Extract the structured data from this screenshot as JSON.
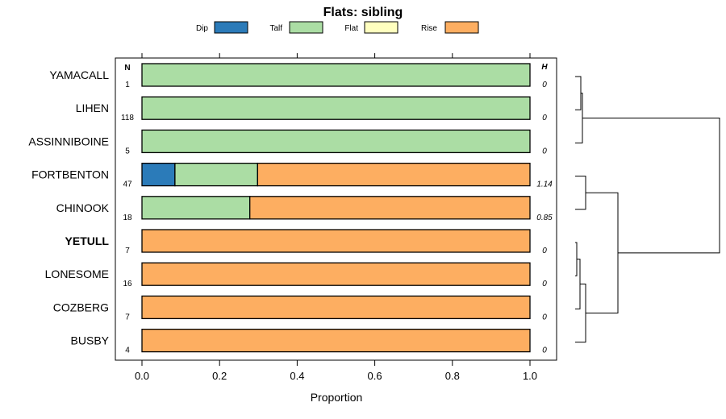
{
  "chart_data": {
    "type": "bar",
    "stacked": true,
    "orientation": "horizontal",
    "title": "Flats: sibling",
    "xlabel": "Proportion",
    "xlim": [
      0,
      1
    ],
    "xticks": [
      "0.0",
      "0.2",
      "0.4",
      "0.6",
      "0.8",
      "1.0"
    ],
    "xtick_values": [
      0,
      0.2,
      0.4,
      0.6,
      0.8,
      1.0
    ],
    "n_header": "N",
    "h_header": "H",
    "legend": [
      {
        "name": "Dip",
        "color": "#2b7bb9"
      },
      {
        "name": "Talf",
        "color": "#abdda4"
      },
      {
        "name": "Flat",
        "color": "#ffffbf"
      },
      {
        "name": "Rise",
        "color": "#fdae61"
      }
    ],
    "categories": [
      "YAMACALL",
      "LIHEN",
      "ASSINNIBOINE",
      "FORTBENTON",
      "CHINOOK",
      "YETULL",
      "LONESOME",
      "COZBERG",
      "BUSBY"
    ],
    "highlight": "YETULL",
    "n": [
      "1",
      "118",
      "5",
      "47",
      "18",
      "7",
      "16",
      "7",
      "4"
    ],
    "h": [
      "0",
      "0",
      "0",
      "1.14",
      "0.85",
      "0",
      "0",
      "0",
      "0"
    ],
    "series": [
      {
        "name": "Dip",
        "values": [
          0,
          0,
          0,
          0.085,
          0,
          0,
          0,
          0,
          0
        ]
      },
      {
        "name": "Talf",
        "values": [
          1,
          1,
          1,
          0.213,
          0.278,
          0,
          0,
          0,
          0
        ]
      },
      {
        "name": "Flat",
        "values": [
          0,
          0,
          0,
          0,
          0,
          0,
          0,
          0,
          0
        ]
      },
      {
        "name": "Rise",
        "values": [
          0,
          0,
          0,
          0.702,
          0.722,
          1,
          1,
          1,
          1
        ]
      }
    ],
    "dendrogram": true
  }
}
